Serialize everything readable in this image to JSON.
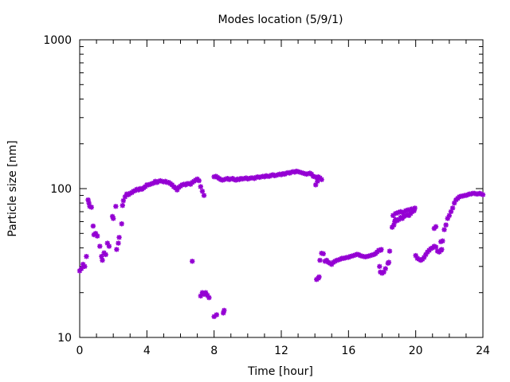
{
  "chart_data": {
    "type": "scatter",
    "title": "Modes location (5/9/1)",
    "xlabel": "Time [hour]",
    "ylabel": "Particle size [nm]",
    "xlim": [
      0,
      24
    ],
    "ylim": [
      10,
      1000
    ],
    "yscale": "log",
    "x_ticks": [
      0,
      4,
      8,
      12,
      16,
      20,
      24
    ],
    "x_tick_labels": [
      "0",
      "4",
      "8",
      "12",
      "16",
      "20",
      "24"
    ],
    "y_ticks": [
      10,
      100,
      1000
    ],
    "y_tick_labels": [
      "10",
      "100",
      "1000"
    ],
    "grid": false,
    "marker": "asterisk",
    "series": [
      {
        "color": "#9400d3",
        "points": [
          [
            0.0,
            28
          ],
          [
            0.1,
            29
          ],
          [
            0.2,
            31
          ],
          [
            0.3,
            30
          ],
          [
            0.4,
            35
          ],
          [
            0.5,
            84
          ],
          [
            0.55,
            80
          ],
          [
            0.6,
            76
          ],
          [
            0.7,
            75
          ],
          [
            0.8,
            56
          ],
          [
            0.85,
            49
          ],
          [
            0.95,
            50
          ],
          [
            1.05,
            48
          ],
          [
            1.2,
            41
          ],
          [
            1.3,
            35
          ],
          [
            1.35,
            33
          ],
          [
            1.45,
            37
          ],
          [
            1.55,
            36
          ],
          [
            1.65,
            43
          ],
          [
            1.75,
            41
          ],
          [
            1.95,
            65
          ],
          [
            2.0,
            63
          ],
          [
            2.15,
            76
          ],
          [
            2.2,
            39
          ],
          [
            2.3,
            43
          ],
          [
            2.35,
            47
          ],
          [
            2.5,
            58
          ],
          [
            2.55,
            77
          ],
          [
            2.6,
            83
          ],
          [
            2.7,
            88
          ],
          [
            2.8,
            92
          ],
          [
            2.9,
            91
          ],
          [
            3.0,
            93
          ],
          [
            3.1,
            94
          ],
          [
            3.2,
            96
          ],
          [
            3.3,
            97
          ],
          [
            3.4,
            99
          ],
          [
            3.5,
            98
          ],
          [
            3.6,
            100
          ],
          [
            3.7,
            99
          ],
          [
            3.8,
            101
          ],
          [
            3.9,
            103
          ],
          [
            4.0,
            106
          ],
          [
            4.1,
            106
          ],
          [
            4.2,
            107
          ],
          [
            4.3,
            108
          ],
          [
            4.4,
            109
          ],
          [
            4.5,
            112
          ],
          [
            4.6,
            110
          ],
          [
            4.7,
            112
          ],
          [
            4.8,
            113
          ],
          [
            4.9,
            112
          ],
          [
            5.0,
            111
          ],
          [
            5.1,
            112
          ],
          [
            5.2,
            110
          ],
          [
            5.3,
            110
          ],
          [
            5.4,
            108
          ],
          [
            5.5,
            106
          ],
          [
            5.6,
            103
          ],
          [
            5.7,
            101
          ],
          [
            5.8,
            98
          ],
          [
            5.9,
            102
          ],
          [
            6.0,
            104
          ],
          [
            6.1,
            106
          ],
          [
            6.2,
            107
          ],
          [
            6.3,
            106
          ],
          [
            6.4,
            108
          ],
          [
            6.5,
            108
          ],
          [
            6.6,
            107
          ],
          [
            6.7,
            110
          ],
          [
            6.8,
            112
          ],
          [
            6.9,
            114
          ],
          [
            7.0,
            116
          ],
          [
            7.1,
            113
          ],
          [
            7.2,
            103
          ],
          [
            7.3,
            96
          ],
          [
            7.4,
            90
          ],
          [
            6.7,
            32.5
          ],
          [
            7.2,
            19
          ],
          [
            7.3,
            20
          ],
          [
            7.4,
            19.5
          ],
          [
            7.5,
            20
          ],
          [
            7.6,
            19.2
          ],
          [
            7.7,
            18.5
          ],
          [
            8.0,
            13.8
          ],
          [
            8.15,
            14.2
          ],
          [
            8.55,
            14.6
          ],
          [
            8.6,
            15.2
          ],
          [
            8.0,
            120
          ],
          [
            8.1,
            121
          ],
          [
            8.2,
            119
          ],
          [
            8.3,
            117
          ],
          [
            8.4,
            115
          ],
          [
            8.5,
            114
          ],
          [
            8.6,
            115
          ],
          [
            8.7,
            116
          ],
          [
            8.8,
            117
          ],
          [
            8.9,
            115
          ],
          [
            9.0,
            116
          ],
          [
            9.1,
            117
          ],
          [
            9.2,
            115
          ],
          [
            9.3,
            114
          ],
          [
            9.4,
            116
          ],
          [
            9.5,
            115
          ],
          [
            9.6,
            117
          ],
          [
            9.7,
            116
          ],
          [
            9.8,
            117
          ],
          [
            9.9,
            118
          ],
          [
            10.0,
            116
          ],
          [
            10.1,
            117
          ],
          [
            10.2,
            118
          ],
          [
            10.3,
            118
          ],
          [
            10.4,
            117
          ],
          [
            10.5,
            119
          ],
          [
            10.6,
            120
          ],
          [
            10.7,
            119
          ],
          [
            10.8,
            120
          ],
          [
            10.9,
            121
          ],
          [
            11.0,
            120
          ],
          [
            11.1,
            122
          ],
          [
            11.2,
            121
          ],
          [
            11.3,
            121
          ],
          [
            11.4,
            123
          ],
          [
            11.5,
            124
          ],
          [
            11.6,
            122
          ],
          [
            11.7,
            123
          ],
          [
            11.8,
            124
          ],
          [
            11.9,
            125
          ],
          [
            12.0,
            124
          ],
          [
            12.1,
            126
          ],
          [
            12.2,
            125
          ],
          [
            12.3,
            127
          ],
          [
            12.4,
            128
          ],
          [
            12.5,
            127
          ],
          [
            12.6,
            129
          ],
          [
            12.7,
            130
          ],
          [
            12.8,
            129
          ],
          [
            12.9,
            131
          ],
          [
            13.0,
            130
          ],
          [
            13.1,
            129
          ],
          [
            13.2,
            128
          ],
          [
            13.3,
            127
          ],
          [
            13.4,
            126
          ],
          [
            13.5,
            125
          ],
          [
            13.6,
            126
          ],
          [
            13.7,
            127
          ],
          [
            13.8,
            125
          ],
          [
            13.9,
            121
          ],
          [
            14.0,
            120
          ],
          [
            14.1,
            119
          ],
          [
            14.2,
            120
          ],
          [
            14.3,
            118
          ],
          [
            14.4,
            115
          ],
          [
            14.05,
            106
          ],
          [
            14.15,
            112
          ],
          [
            14.1,
            24.5
          ],
          [
            14.2,
            25
          ],
          [
            14.25,
            25.5
          ],
          [
            14.3,
            33
          ],
          [
            14.4,
            36.8
          ],
          [
            14.5,
            36.5
          ],
          [
            14.6,
            32.5
          ],
          [
            14.7,
            33
          ],
          [
            14.8,
            32
          ],
          [
            14.9,
            31.5
          ],
          [
            15.0,
            31
          ],
          [
            15.1,
            32
          ],
          [
            15.2,
            32.5
          ],
          [
            15.3,
            33
          ],
          [
            15.4,
            33.2
          ],
          [
            15.5,
            33.5
          ],
          [
            15.6,
            34
          ],
          [
            15.7,
            34
          ],
          [
            15.8,
            34.2
          ],
          [
            15.9,
            34.5
          ],
          [
            16.0,
            34.5
          ],
          [
            16.1,
            35
          ],
          [
            16.2,
            35.2
          ],
          [
            16.3,
            35.5
          ],
          [
            16.4,
            35.8
          ],
          [
            16.5,
            36.2
          ],
          [
            16.6,
            36
          ],
          [
            16.7,
            35.5
          ],
          [
            16.8,
            35.2
          ],
          [
            16.9,
            35
          ],
          [
            17.0,
            34.8
          ],
          [
            17.1,
            35
          ],
          [
            17.2,
            35.2
          ],
          [
            17.3,
            35.5
          ],
          [
            17.4,
            35.8
          ],
          [
            17.5,
            36
          ],
          [
            17.6,
            36.5
          ],
          [
            17.7,
            37.5
          ],
          [
            17.8,
            38.5
          ],
          [
            17.9,
            38.5
          ],
          [
            17.95,
            39
          ],
          [
            17.85,
            30
          ],
          [
            17.9,
            27.5
          ],
          [
            18.0,
            27
          ],
          [
            18.1,
            27.5
          ],
          [
            18.2,
            29
          ],
          [
            18.35,
            31.5
          ],
          [
            18.4,
            32
          ],
          [
            18.45,
            38
          ],
          [
            18.6,
            55
          ],
          [
            18.7,
            57
          ],
          [
            18.75,
            60
          ],
          [
            18.8,
            62
          ],
          [
            18.9,
            61
          ],
          [
            19.0,
            62
          ],
          [
            19.1,
            64
          ],
          [
            19.2,
            63
          ],
          [
            19.3,
            65
          ],
          [
            19.4,
            66
          ],
          [
            19.5,
            67
          ],
          [
            19.6,
            66
          ],
          [
            19.7,
            68
          ],
          [
            19.8,
            70
          ],
          [
            19.9,
            71
          ],
          [
            18.65,
            66
          ],
          [
            18.8,
            68
          ],
          [
            18.95,
            69
          ],
          [
            19.1,
            70
          ],
          [
            19.25,
            69
          ],
          [
            19.4,
            71
          ],
          [
            19.55,
            72
          ],
          [
            19.75,
            73
          ],
          [
            19.95,
            74
          ],
          [
            20.0,
            35.5
          ],
          [
            20.1,
            34
          ],
          [
            20.2,
            33.5
          ],
          [
            20.3,
            33
          ],
          [
            20.4,
            33.5
          ],
          [
            20.5,
            34.5
          ],
          [
            20.6,
            36
          ],
          [
            20.7,
            37.5
          ],
          [
            20.8,
            38.5
          ],
          [
            20.9,
            39.5
          ],
          [
            21.0,
            40
          ],
          [
            21.1,
            41
          ],
          [
            21.2,
            40.5
          ],
          [
            21.3,
            38
          ],
          [
            21.4,
            37.5
          ],
          [
            21.5,
            38.5
          ],
          [
            21.55,
            39
          ],
          [
            21.1,
            54
          ],
          [
            21.2,
            55.5
          ],
          [
            21.5,
            44
          ],
          [
            21.6,
            44.5
          ],
          [
            21.7,
            53
          ],
          [
            21.8,
            57
          ],
          [
            21.9,
            63
          ],
          [
            22.0,
            66
          ],
          [
            22.1,
            70
          ],
          [
            22.2,
            74
          ],
          [
            22.3,
            80
          ],
          [
            22.4,
            84
          ],
          [
            22.5,
            86
          ],
          [
            22.6,
            88
          ],
          [
            22.7,
            89
          ],
          [
            22.8,
            89
          ],
          [
            22.9,
            90
          ],
          [
            23.0,
            90
          ],
          [
            23.1,
            91
          ],
          [
            23.2,
            92
          ],
          [
            23.3,
            92
          ],
          [
            23.4,
            93
          ],
          [
            23.5,
            93
          ],
          [
            23.6,
            92
          ],
          [
            23.7,
            92
          ],
          [
            23.8,
            93
          ],
          [
            23.9,
            92
          ],
          [
            24.0,
            91
          ]
        ]
      }
    ]
  }
}
